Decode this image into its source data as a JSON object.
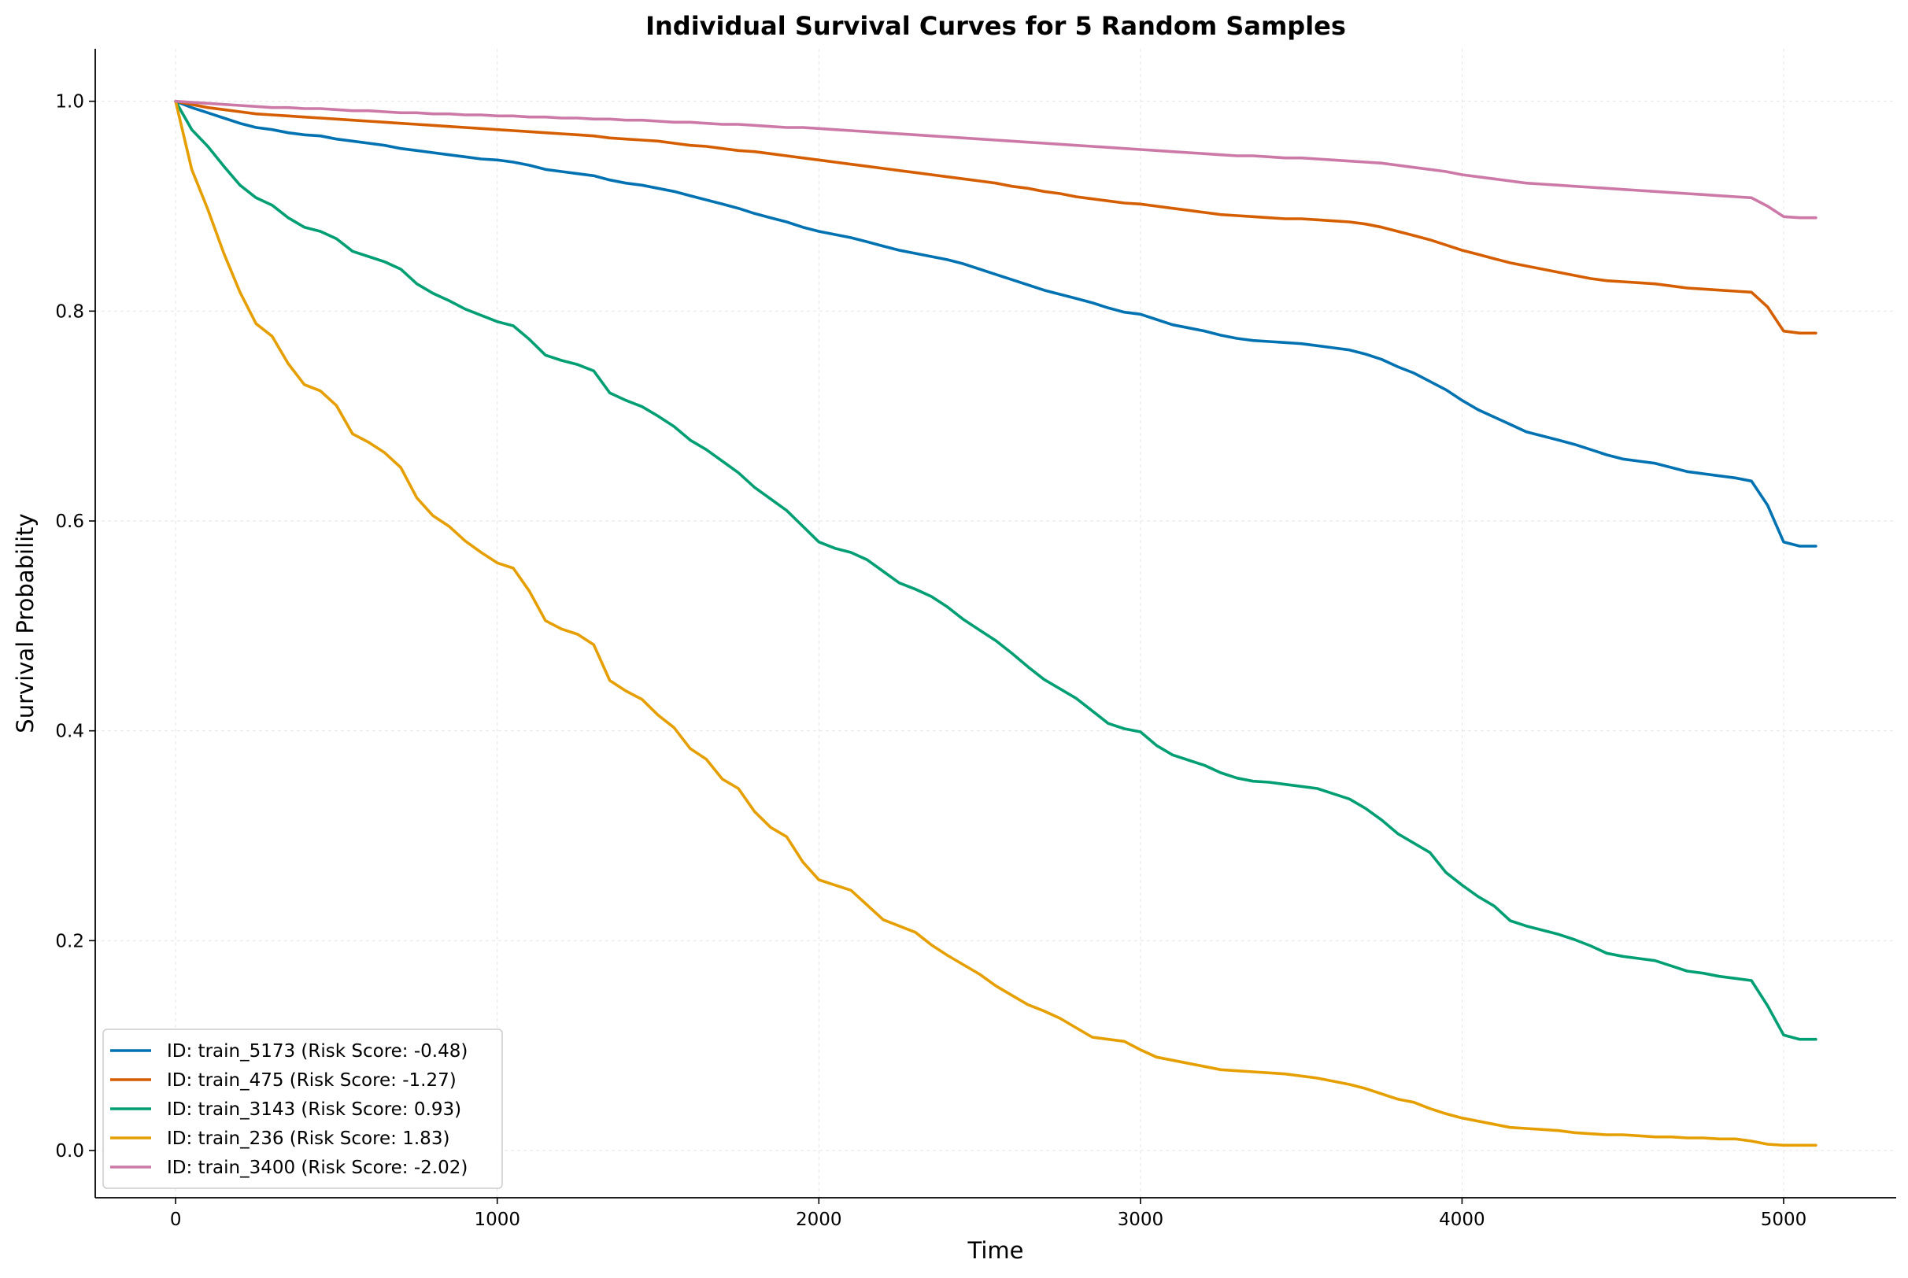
{
  "chart_data": {
    "type": "line",
    "title": "Individual Survival Curves for 5 Random Samples",
    "xlabel": "Time",
    "ylabel": "Survival Probability",
    "xlim": [
      -250,
      5350
    ],
    "ylim": [
      -0.045,
      1.05
    ],
    "xticks": [
      0,
      1000,
      2000,
      3000,
      4000,
      5000
    ],
    "yticks": [
      0.0,
      0.2,
      0.4,
      0.6,
      0.8,
      1.0
    ],
    "xtick_labels": [
      "0",
      "1000",
      "2000",
      "3000",
      "4000",
      "5000"
    ],
    "ytick_labels": [
      "0.0",
      "0.2",
      "0.4",
      "0.6",
      "0.8",
      "1.0"
    ],
    "grid": true,
    "legend_position": "lower-left",
    "x": [
      0,
      50,
      100,
      150,
      200,
      250,
      300,
      350,
      400,
      450,
      500,
      550,
      600,
      650,
      700,
      750,
      800,
      850,
      900,
      950,
      1000,
      1050,
      1100,
      1150,
      1200,
      1250,
      1300,
      1350,
      1400,
      1450,
      1500,
      1550,
      1600,
      1650,
      1700,
      1750,
      1800,
      1850,
      1900,
      1950,
      2000,
      2050,
      2100,
      2150,
      2200,
      2250,
      2300,
      2350,
      2400,
      2450,
      2500,
      2550,
      2600,
      2650,
      2700,
      2750,
      2800,
      2850,
      2900,
      2950,
      3000,
      3050,
      3100,
      3150,
      3200,
      3250,
      3300,
      3350,
      3400,
      3450,
      3500,
      3550,
      3600,
      3650,
      3700,
      3750,
      3800,
      3850,
      3900,
      3950,
      4000,
      4050,
      4100,
      4150,
      4200,
      4250,
      4300,
      4350,
      4400,
      4450,
      4500,
      4550,
      4600,
      4650,
      4700,
      4750,
      4800,
      4850,
      4900,
      4950,
      5000,
      5050,
      5100
    ],
    "series": [
      {
        "name": "ID: train_5173 (Risk Score: -0.48)",
        "color": "#0072b2",
        "values": [
          1.0,
          0.994,
          0.989,
          0.984,
          0.979,
          0.975,
          0.973,
          0.97,
          0.968,
          0.967,
          0.964,
          0.962,
          0.96,
          0.958,
          0.955,
          0.953,
          0.951,
          0.949,
          0.947,
          0.945,
          0.944,
          0.942,
          0.939,
          0.935,
          0.933,
          0.931,
          0.929,
          0.925,
          0.922,
          0.92,
          0.917,
          0.914,
          0.91,
          0.906,
          0.902,
          0.898,
          0.893,
          0.889,
          0.885,
          0.88,
          0.876,
          0.873,
          0.87,
          0.866,
          0.862,
          0.858,
          0.855,
          0.852,
          0.849,
          0.845,
          0.84,
          0.835,
          0.83,
          0.825,
          0.82,
          0.816,
          0.812,
          0.808,
          0.803,
          0.799,
          0.797,
          0.792,
          0.787,
          0.784,
          0.781,
          0.777,
          0.774,
          0.772,
          0.771,
          0.77,
          0.769,
          0.767,
          0.765,
          0.763,
          0.759,
          0.754,
          0.747,
          0.741,
          0.733,
          0.725,
          0.715,
          0.706,
          0.699,
          0.692,
          0.685,
          0.681,
          0.677,
          0.673,
          0.668,
          0.663,
          0.659,
          0.657,
          0.655,
          0.651,
          0.647,
          0.645,
          0.643,
          0.641,
          0.638,
          0.615,
          0.58,
          0.576,
          0.576
        ]
      },
      {
        "name": "ID: train_475 (Risk Score: -1.27)",
        "color": "#d55e00",
        "values": [
          1.0,
          0.997,
          0.994,
          0.992,
          0.99,
          0.988,
          0.987,
          0.986,
          0.985,
          0.984,
          0.983,
          0.982,
          0.981,
          0.98,
          0.979,
          0.978,
          0.977,
          0.976,
          0.975,
          0.974,
          0.973,
          0.972,
          0.971,
          0.97,
          0.969,
          0.968,
          0.967,
          0.965,
          0.964,
          0.963,
          0.962,
          0.96,
          0.958,
          0.957,
          0.955,
          0.953,
          0.952,
          0.95,
          0.948,
          0.946,
          0.944,
          0.942,
          0.94,
          0.938,
          0.936,
          0.934,
          0.932,
          0.93,
          0.928,
          0.926,
          0.924,
          0.922,
          0.919,
          0.917,
          0.914,
          0.912,
          0.909,
          0.907,
          0.905,
          0.903,
          0.902,
          0.9,
          0.898,
          0.896,
          0.894,
          0.892,
          0.891,
          0.89,
          0.889,
          0.888,
          0.888,
          0.887,
          0.886,
          0.885,
          0.883,
          0.88,
          0.876,
          0.872,
          0.868,
          0.863,
          0.858,
          0.854,
          0.85,
          0.846,
          0.843,
          0.84,
          0.837,
          0.834,
          0.831,
          0.829,
          0.828,
          0.827,
          0.826,
          0.824,
          0.822,
          0.821,
          0.82,
          0.819,
          0.818,
          0.804,
          0.781,
          0.779,
          0.779
        ]
      },
      {
        "name": "ID: train_3143 (Risk Score: 0.93)",
        "color": "#009e73",
        "values": [
          1.0,
          0.973,
          0.957,
          0.938,
          0.92,
          0.908,
          0.901,
          0.889,
          0.88,
          0.876,
          0.869,
          0.857,
          0.852,
          0.847,
          0.84,
          0.826,
          0.817,
          0.81,
          0.802,
          0.796,
          0.79,
          0.786,
          0.773,
          0.758,
          0.753,
          0.749,
          0.743,
          0.722,
          0.715,
          0.709,
          0.7,
          0.69,
          0.677,
          0.668,
          0.657,
          0.646,
          0.632,
          0.621,
          0.61,
          0.595,
          0.58,
          0.574,
          0.57,
          0.563,
          0.552,
          0.541,
          0.535,
          0.528,
          0.518,
          0.506,
          0.496,
          0.486,
          0.474,
          0.461,
          0.449,
          0.44,
          0.431,
          0.419,
          0.407,
          0.402,
          0.399,
          0.386,
          0.377,
          0.372,
          0.367,
          0.36,
          0.355,
          0.352,
          0.351,
          0.349,
          0.347,
          0.345,
          0.34,
          0.335,
          0.326,
          0.315,
          0.302,
          0.293,
          0.284,
          0.265,
          0.253,
          0.242,
          0.233,
          0.219,
          0.214,
          0.21,
          0.206,
          0.201,
          0.195,
          0.188,
          0.185,
          0.183,
          0.181,
          0.176,
          0.171,
          0.169,
          0.166,
          0.164,
          0.162,
          0.138,
          0.11,
          0.106,
          0.106
        ]
      },
      {
        "name": "ID: train_236 (Risk Score: 1.83)",
        "color": "#e69f00",
        "values": [
          1.0,
          0.935,
          0.897,
          0.855,
          0.818,
          0.788,
          0.776,
          0.75,
          0.73,
          0.724,
          0.71,
          0.683,
          0.675,
          0.665,
          0.651,
          0.622,
          0.605,
          0.595,
          0.581,
          0.57,
          0.56,
          0.555,
          0.533,
          0.505,
          0.497,
          0.492,
          0.482,
          0.448,
          0.438,
          0.43,
          0.415,
          0.403,
          0.383,
          0.373,
          0.354,
          0.345,
          0.323,
          0.308,
          0.299,
          0.275,
          0.258,
          0.253,
          0.248,
          0.234,
          0.22,
          0.214,
          0.208,
          0.196,
          0.186,
          0.177,
          0.168,
          0.157,
          0.148,
          0.139,
          0.133,
          0.126,
          0.117,
          0.108,
          0.106,
          0.104,
          0.096,
          0.089,
          0.086,
          0.083,
          0.08,
          0.077,
          0.076,
          0.075,
          0.074,
          0.073,
          0.071,
          0.069,
          0.066,
          0.063,
          0.059,
          0.054,
          0.049,
          0.046,
          0.04,
          0.035,
          0.031,
          0.028,
          0.025,
          0.022,
          0.021,
          0.02,
          0.019,
          0.017,
          0.016,
          0.015,
          0.015,
          0.014,
          0.013,
          0.013,
          0.012,
          0.012,
          0.011,
          0.011,
          0.009,
          0.006,
          0.005,
          0.005,
          0.005
        ]
      },
      {
        "name": "ID: train_3400 (Risk Score: -2.02)",
        "color": "#cc79a7",
        "values": [
          1.0,
          0.999,
          0.998,
          0.997,
          0.996,
          0.995,
          0.994,
          0.994,
          0.993,
          0.993,
          0.992,
          0.991,
          0.991,
          0.99,
          0.989,
          0.989,
          0.988,
          0.988,
          0.987,
          0.987,
          0.986,
          0.986,
          0.985,
          0.985,
          0.984,
          0.984,
          0.983,
          0.983,
          0.982,
          0.982,
          0.981,
          0.98,
          0.98,
          0.979,
          0.978,
          0.978,
          0.977,
          0.976,
          0.975,
          0.975,
          0.974,
          0.973,
          0.972,
          0.971,
          0.97,
          0.969,
          0.968,
          0.967,
          0.966,
          0.965,
          0.964,
          0.963,
          0.962,
          0.961,
          0.96,
          0.959,
          0.958,
          0.957,
          0.956,
          0.955,
          0.954,
          0.953,
          0.952,
          0.951,
          0.95,
          0.949,
          0.948,
          0.948,
          0.947,
          0.946,
          0.946,
          0.945,
          0.944,
          0.943,
          0.942,
          0.941,
          0.939,
          0.937,
          0.935,
          0.933,
          0.93,
          0.928,
          0.926,
          0.924,
          0.922,
          0.921,
          0.92,
          0.919,
          0.918,
          0.917,
          0.916,
          0.915,
          0.914,
          0.913,
          0.912,
          0.911,
          0.91,
          0.909,
          0.908,
          0.9,
          0.89,
          0.889,
          0.889
        ]
      }
    ]
  }
}
